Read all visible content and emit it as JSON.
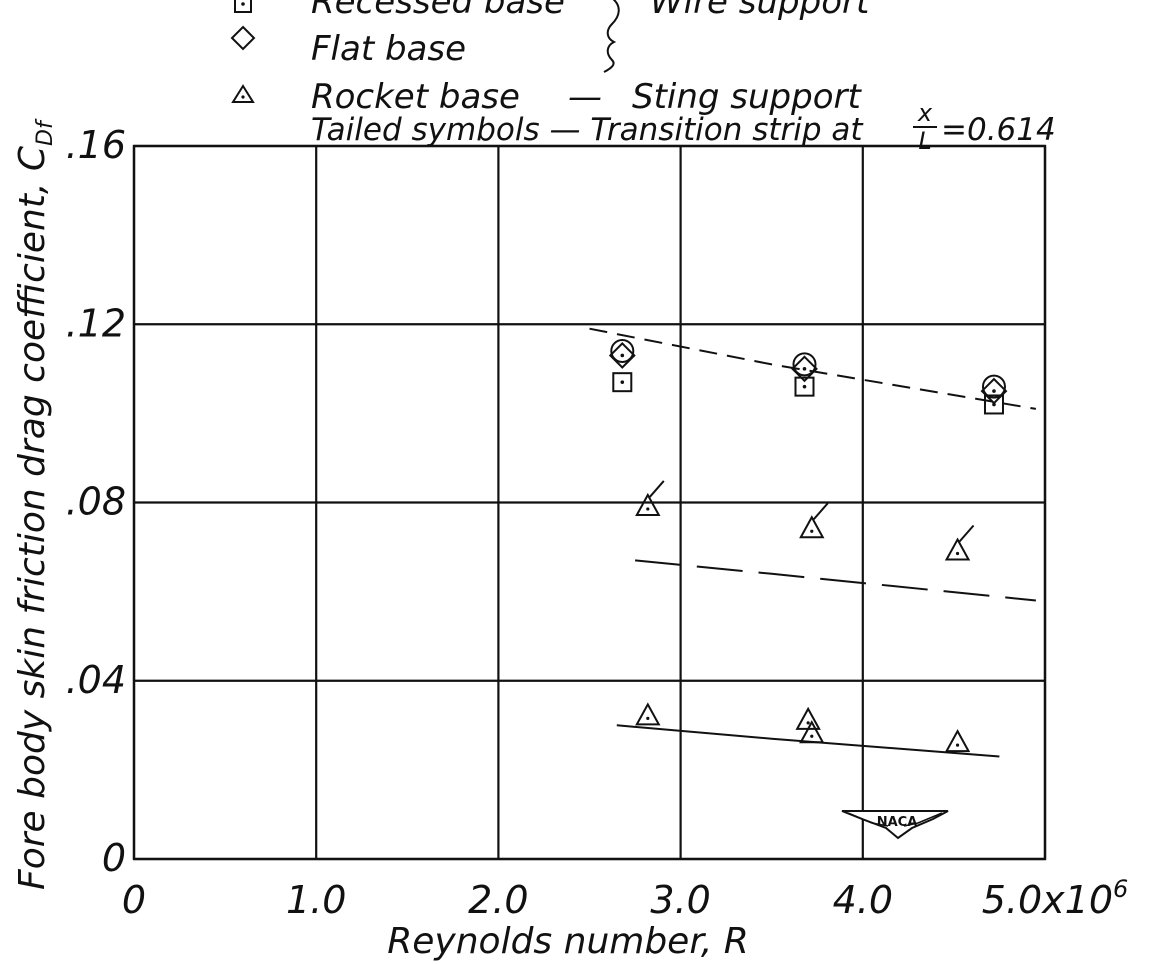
{
  "chart_data": {
    "type": "scatter",
    "title": "",
    "xlabel": "Reynolds number, R",
    "ylabel": "Fore body skin friction drag coefficient, C",
    "ylabel_sub": "Df",
    "xlim": [
      0,
      5.0
    ],
    "ylim": [
      0,
      0.16
    ],
    "x_tick_labels": [
      "0",
      "1.0",
      "2.0",
      "3.0",
      "4.0",
      "5.0x10"
    ],
    "x_tick_exponent": "6",
    "y_tick_labels": [
      "0",
      ".04",
      ".08",
      ".12",
      ".16"
    ],
    "grid": true,
    "legend": {
      "entries": [
        {
          "marker": "square",
          "label": "Recessed base"
        },
        {
          "marker": "diamond",
          "label": "Flat base"
        },
        {
          "marker": "triangle",
          "label": "Rocket base"
        }
      ],
      "group_label_wire": "Wire support",
      "dash": "—",
      "sting_label": "Sting support",
      "tailed_note_prefix": "Tailed symbols — Transition strip at",
      "fraction_num": "x",
      "fraction_den": "L",
      "tailed_note_value": "=0.614"
    },
    "series": [
      {
        "marker": "square",
        "points": [
          {
            "x": 2.68,
            "y": 0.107
          },
          {
            "x": 3.68,
            "y": 0.106
          },
          {
            "x": 4.72,
            "y": 0.102
          }
        ]
      },
      {
        "marker": "diamond",
        "points": [
          {
            "x": 2.68,
            "y": 0.113
          },
          {
            "x": 3.68,
            "y": 0.11
          },
          {
            "x": 4.72,
            "y": 0.105
          }
        ]
      },
      {
        "marker": "circle",
        "points": [
          {
            "x": 2.68,
            "y": 0.114
          },
          {
            "x": 3.68,
            "y": 0.111
          },
          {
            "x": 4.72,
            "y": 0.106
          }
        ]
      },
      {
        "marker": "triangle",
        "points": [
          {
            "x": 2.82,
            "y": 0.079
          },
          {
            "x": 3.72,
            "y": 0.074
          },
          {
            "x": 4.52,
            "y": 0.069
          }
        ],
        "tailed": true
      },
      {
        "marker": "triangle",
        "points": [
          {
            "x": 2.82,
            "y": 0.032
          },
          {
            "x": 3.7,
            "y": 0.031
          },
          {
            "x": 3.72,
            "y": 0.028
          },
          {
            "x": 4.52,
            "y": 0.026
          }
        ]
      }
    ],
    "curves": [
      {
        "style": "short-dash",
        "points": [
          [
            2.5,
            0.119
          ],
          [
            3.5,
            0.111
          ],
          [
            4.95,
            0.101
          ]
        ]
      },
      {
        "style": "long-dash",
        "points": [
          [
            2.75,
            0.067
          ],
          [
            3.5,
            0.064
          ],
          [
            4.95,
            0.058
          ]
        ]
      },
      {
        "style": "solid",
        "points": [
          [
            2.65,
            0.03
          ],
          [
            3.5,
            0.027
          ],
          [
            4.75,
            0.023
          ]
        ]
      }
    ],
    "logo_text": "NACA"
  }
}
